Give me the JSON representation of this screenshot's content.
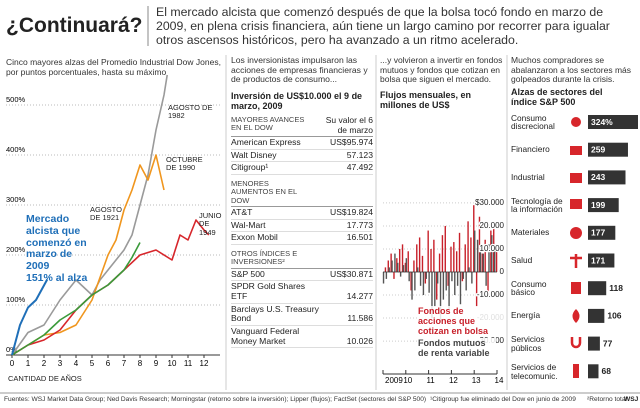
{
  "header": {
    "title": "¿Continuará?",
    "text": "El mercado alcista que comenzó después de que la bolsa tocó fondo en marzo de 2009, en plena crisis financiera, aún tiene un largo camino por recorrer para igualar otros ascensos históricos, pero ha avanzado a un ritmo acelerado."
  },
  "chart_data": [
    {
      "type": "line",
      "subtitle": "Cinco mayores alzas del Promedio Industrial Dow Jones, por puntos porcentuales, hasta su máximo",
      "xlabel": "CANTIDAD DE AÑOS",
      "xlim": [
        0,
        13
      ],
      "xticks": [
        0,
        1,
        2,
        3,
        4,
        5,
        6,
        7,
        8,
        9,
        10,
        11,
        12
      ],
      "ylim": [
        0,
        600
      ],
      "yticks": [
        {
          "value": 0,
          "label": "0%"
        },
        {
          "value": 100,
          "label": "100%"
        },
        {
          "value": 200,
          "label": "200%"
        },
        {
          "value": 300,
          "label": "300%"
        },
        {
          "value": 400,
          "label": "400%"
        },
        {
          "value": 500,
          "label": "500%"
        }
      ],
      "grid": true,
      "annotations": [
        "151% al alza"
      ],
      "series": [
        {
          "name": "AGOSTO DE 1982",
          "color": "#9a9a9a",
          "x": [
            0,
            1,
            2,
            3,
            4,
            5,
            5.5,
            6,
            7,
            7.5,
            8,
            8.5,
            9,
            9.5,
            9.7
          ],
          "values": [
            0,
            45,
            60,
            110,
            150,
            120,
            150,
            170,
            210,
            240,
            300,
            360,
            450,
            520,
            560
          ]
        },
        {
          "name": "OCTUBRE DE 1990",
          "color": "#f0961e",
          "x": [
            0,
            1,
            2,
            3,
            4,
            5,
            6,
            6.5,
            7,
            7.5,
            8,
            8.5,
            9,
            9.5
          ],
          "values": [
            0,
            20,
            40,
            45,
            60,
            110,
            200,
            230,
            290,
            330,
            380,
            350,
            400,
            330
          ]
        },
        {
          "name": "JUNIO DE 1949",
          "color": "#d7262b",
          "x": [
            0,
            1,
            2,
            3,
            4,
            5,
            6,
            7,
            8,
            9,
            10,
            10.5,
            11,
            11.5,
            12,
            12.3
          ],
          "values": [
            0,
            20,
            30,
            50,
            90,
            120,
            140,
            170,
            200,
            210,
            190,
            240,
            230,
            270,
            250,
            240
          ]
        },
        {
          "name": "AGOSTO DE 1921",
          "color": "#3a9a3a",
          "x": [
            0,
            1,
            2,
            3,
            4,
            5,
            6,
            7,
            7.5,
            8
          ],
          "values": [
            0,
            20,
            40,
            70,
            90,
            120,
            140,
            170,
            195,
            225
          ]
        },
        {
          "name": "Mercado alcista que comenzó en marzo de 2009",
          "color": "#1f6fb8",
          "x": [
            0,
            0.5,
            1,
            1.5,
            2.2
          ],
          "values": [
            0,
            60,
            95,
            110,
            151
          ]
        }
      ]
    },
    {
      "type": "bar",
      "subtitle": "...y volvieron a invertir en fondos mutuos y fondos que cotizan en bolsa que siguen el mercado.",
      "title": "Flujos mensuales, en millones de US$",
      "xlim": [
        2009,
        2014
      ],
      "xticks": [
        {
          "value": 2009,
          "label": "2009"
        },
        {
          "value": 2010,
          "label": "10"
        },
        {
          "value": 2011,
          "label": "11"
        },
        {
          "value": 2012,
          "label": "12"
        },
        {
          "value": 2013,
          "label": "13"
        },
        {
          "value": 2014,
          "label": "14"
        }
      ],
      "ylim": [
        -33000,
        33000
      ],
      "yticks": [
        {
          "value": 30000,
          "label": "$30.000"
        },
        {
          "value": 20000,
          "label": "20.000"
        },
        {
          "value": 10000,
          "label": "10.000"
        },
        0,
        {
          "value": -10000,
          "label": "-10.000"
        },
        {
          "value": -20000,
          "label": "-20.000"
        },
        {
          "value": -30000,
          "label": "-30.000"
        }
      ],
      "grid": true,
      "x": [
        2009.0625,
        2009.1875,
        2009.3125,
        2009.4375,
        2009.5625,
        2009.6875,
        2009.8125,
        2009.9375,
        2010.0625,
        2010.1875,
        2010.3125,
        2010.4375,
        2010.5625,
        2010.6875,
        2010.8125,
        2010.9375,
        2011.0625,
        2011.1875,
        2011.3125,
        2011.4375,
        2011.5625,
        2011.6875,
        2011.8125,
        2011.9375,
        2012.0625,
        2012.1875,
        2012.3125,
        2012.4375,
        2012.5625,
        2012.6875,
        2012.8125,
        2012.9375,
        2013.0625,
        2013.1875,
        2013.3125,
        2013.4375,
        2013.5625,
        2013.6875,
        2013.8125,
        2013.9375
      ],
      "series": [
        {
          "name": "Fondos de acciones que cotizan en bolsa",
          "color": "#c8202a",
          "values": [
            2000,
            5000,
            8000,
            -3000,
            6000,
            10000,
            12000,
            4000,
            9000,
            -8000,
            5000,
            12000,
            15000,
            7000,
            -5000,
            18000,
            10000,
            14000,
            -12000,
            8000,
            16000,
            20000,
            -6000,
            11000,
            13000,
            9000,
            17000,
            -4000,
            12000,
            22000,
            15000,
            29000,
            -15000,
            24000,
            8000,
            14000,
            -9000,
            18000,
            21000,
            12000
          ]
        },
        {
          "name": "Fondos mutuos de renta variable",
          "color": "#555555",
          "values": [
            -5000,
            -3000,
            2000,
            5000,
            8000,
            4000,
            -2000,
            3000,
            6000,
            -4000,
            -12000,
            -8000,
            2000,
            -6000,
            -10000,
            -3000,
            -9000,
            -20000,
            -15000,
            -5000,
            -22000,
            -12000,
            -8000,
            -16000,
            -4000,
            -10000,
            -6000,
            -14000,
            -3000,
            -8000,
            2000,
            -5000,
            18000,
            14000,
            10000,
            8000,
            -6000,
            12000,
            16000,
            9000
          ]
        }
      ]
    },
    {
      "type": "hbar",
      "subtitle": "Muchos compradores se abalanzaron a los sectores más golpeados durante la crisis.",
      "title": "Alzas de sectores del índice S&P 500",
      "color": "#333333",
      "categories": [
        "Consumo discrecional",
        "Financiero",
        "Industrial",
        "Tecnología de la información",
        "Materiales",
        "Salud",
        "Consumo básico",
        "Energía",
        "Servicios públicos",
        "Servicios de telecomunic."
      ],
      "values": [
        324,
        259,
        243,
        199,
        177,
        171,
        118,
        106,
        77,
        68
      ],
      "value_labels": [
        "324%",
        "259",
        "243",
        "199",
        "177",
        "171",
        "118",
        "106",
        "77",
        "68"
      ]
    }
  ],
  "table": {
    "intro": "Los inversionistas impulsaron las acciones de empresas financieras y de productos de consumo...",
    "heading": "Inversión de US$10.000 el 9 de marzo, 2009",
    "column_header": "Su valor el 6 de marzo",
    "sections": [
      {
        "name": "MAYORES AVANCES EN EL DOW",
        "rows": [
          [
            "American Express",
            "US$95.974"
          ],
          [
            "Walt Disney",
            "57.123"
          ],
          [
            "Citigroup¹",
            "47.492"
          ]
        ]
      },
      {
        "name": "MENORES AUMENTOS EN EL DOW",
        "rows": [
          [
            "AT&T",
            "US$19.824"
          ],
          [
            "Wal-Mart",
            "17.773"
          ],
          [
            "Exxon Mobil",
            "16.501"
          ]
        ]
      },
      {
        "name": "OTROS ÍNDICES E INVERSIONES²",
        "rows": [
          [
            "S&P 500",
            "US$30.871"
          ],
          [
            "SPDR Gold Shares ETF",
            "14.277"
          ],
          [
            "Barclays U.S. Treasury Bond",
            "11.586"
          ],
          [
            "Vanguard Federal Money Market",
            "10.026"
          ]
        ]
      }
    ]
  },
  "footer": {
    "sources": "Fuentes: WSJ Market Data Group; Ned Davis Research; Morningstar (retorno sobre la inversión); Lipper (flujos); FactSet (sectores del S&P 500)",
    "note1": "¹Citigroup fue eliminado del Dow en junio de 2009",
    "note2": "²Retorno total",
    "brand": "WSJ"
  }
}
